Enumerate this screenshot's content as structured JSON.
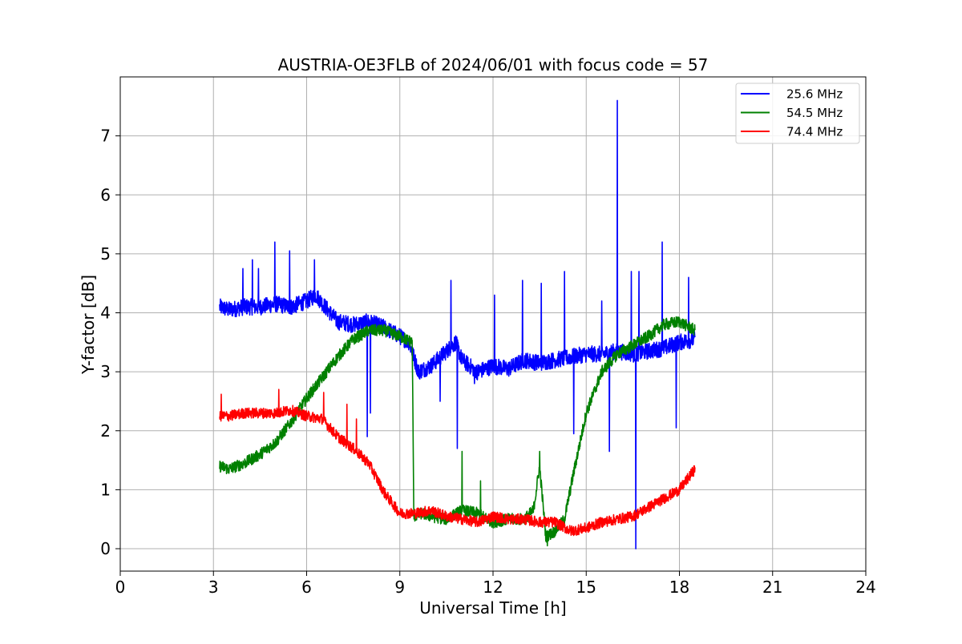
{
  "chart_data": {
    "type": "line",
    "title": "AUSTRIA-OE3FLB of 2024/06/01 with focus code = 57",
    "xlabel": "Universal Time [h]",
    "ylabel": "Y-factor [dB]",
    "xlim": [
      0,
      24
    ],
    "ylim": [
      -0.38,
      8.0
    ],
    "xticks": [
      0,
      3,
      6,
      9,
      12,
      15,
      18,
      21,
      24
    ],
    "yticks": [
      0,
      1,
      2,
      3,
      4,
      5,
      6,
      7
    ],
    "grid": true,
    "legend_position": "top-right",
    "series": [
      {
        "name": "25.6 MHz",
        "color": "#0000ff",
        "x": [
          3.2,
          3.5,
          4.0,
          4.5,
          5.0,
          5.5,
          6.0,
          6.3,
          6.6,
          7.0,
          7.5,
          8.0,
          8.5,
          9.0,
          9.3,
          9.6,
          10.0,
          10.5,
          10.8,
          11.0,
          11.5,
          12.0,
          12.5,
          13.0,
          13.5,
          14.0,
          14.5,
          15.0,
          15.5,
          16.0,
          16.5,
          17.0,
          17.5,
          18.0,
          18.5
        ],
        "y": [
          4.1,
          4.05,
          4.1,
          4.1,
          4.15,
          4.1,
          4.2,
          4.3,
          4.1,
          3.85,
          3.8,
          3.85,
          3.75,
          3.6,
          3.5,
          3.0,
          3.1,
          3.35,
          3.5,
          3.2,
          3.0,
          3.1,
          3.05,
          3.2,
          3.15,
          3.2,
          3.25,
          3.3,
          3.3,
          3.35,
          3.3,
          3.35,
          3.4,
          3.5,
          3.55
        ],
        "spikes": [
          [
            3.95,
            4.75
          ],
          [
            4.25,
            4.9
          ],
          [
            4.45,
            4.75
          ],
          [
            4.98,
            5.2
          ],
          [
            5.45,
            5.05
          ],
          [
            6.25,
            4.9
          ],
          [
            7.95,
            1.9
          ],
          [
            8.05,
            2.3
          ],
          [
            10.3,
            2.5
          ],
          [
            10.65,
            4.55
          ],
          [
            10.85,
            1.7
          ],
          [
            11.4,
            2.8
          ],
          [
            12.05,
            4.3
          ],
          [
            12.95,
            4.55
          ],
          [
            13.55,
            4.5
          ],
          [
            14.3,
            4.7
          ],
          [
            14.6,
            1.95
          ],
          [
            15.5,
            4.2
          ],
          [
            15.75,
            1.65
          ],
          [
            16.0,
            7.6
          ],
          [
            16.45,
            4.7
          ],
          [
            16.6,
            0.0
          ],
          [
            16.7,
            4.7
          ],
          [
            17.45,
            5.2
          ],
          [
            17.9,
            2.05
          ],
          [
            18.3,
            4.6
          ]
        ]
      },
      {
        "name": "54.5 MHz",
        "color": "#008000",
        "x": [
          3.2,
          3.5,
          4.0,
          4.5,
          5.0,
          5.5,
          6.0,
          6.5,
          7.0,
          7.5,
          8.0,
          8.5,
          9.0,
          9.4,
          9.45,
          9.7,
          10.0,
          10.5,
          11.0,
          11.5,
          12.0,
          12.5,
          13.0,
          13.3,
          13.5,
          13.7,
          14.0,
          14.3,
          14.6,
          15.0,
          15.5,
          16.0,
          16.5,
          17.0,
          17.5,
          18.0,
          18.5
        ],
        "y": [
          1.4,
          1.35,
          1.45,
          1.6,
          1.8,
          2.15,
          2.55,
          2.9,
          3.25,
          3.55,
          3.7,
          3.7,
          3.6,
          3.5,
          0.55,
          0.6,
          0.55,
          0.5,
          0.65,
          0.6,
          0.45,
          0.5,
          0.5,
          0.65,
          1.4,
          0.2,
          0.3,
          0.5,
          1.3,
          2.3,
          3.0,
          3.3,
          3.45,
          3.6,
          3.8,
          3.85,
          3.7
        ],
        "spikes": [
          [
            11.0,
            1.65
          ],
          [
            11.6,
            1.15
          ],
          [
            13.5,
            1.65
          ],
          [
            13.75,
            0.05
          ]
        ]
      },
      {
        "name": "74.4 MHz",
        "color": "#ff0000",
        "x": [
          3.2,
          3.5,
          4.0,
          4.5,
          5.0,
          5.5,
          6.0,
          6.5,
          7.0,
          7.5,
          8.0,
          8.5,
          9.0,
          9.5,
          10.0,
          10.5,
          11.0,
          11.5,
          12.0,
          12.5,
          13.0,
          13.5,
          14.0,
          14.5,
          15.0,
          15.5,
          16.0,
          16.5,
          17.0,
          17.5,
          18.0,
          18.5
        ],
        "y": [
          2.25,
          2.25,
          2.3,
          2.3,
          2.3,
          2.35,
          2.25,
          2.2,
          1.9,
          1.7,
          1.45,
          0.95,
          0.6,
          0.6,
          0.65,
          0.55,
          0.5,
          0.45,
          0.55,
          0.5,
          0.5,
          0.45,
          0.45,
          0.3,
          0.35,
          0.45,
          0.5,
          0.55,
          0.7,
          0.85,
          1.0,
          1.35
        ],
        "spikes": [
          [
            3.25,
            2.62
          ],
          [
            5.1,
            2.7
          ],
          [
            6.55,
            2.65
          ],
          [
            7.3,
            2.45
          ],
          [
            7.6,
            2.2
          ]
        ]
      }
    ]
  }
}
